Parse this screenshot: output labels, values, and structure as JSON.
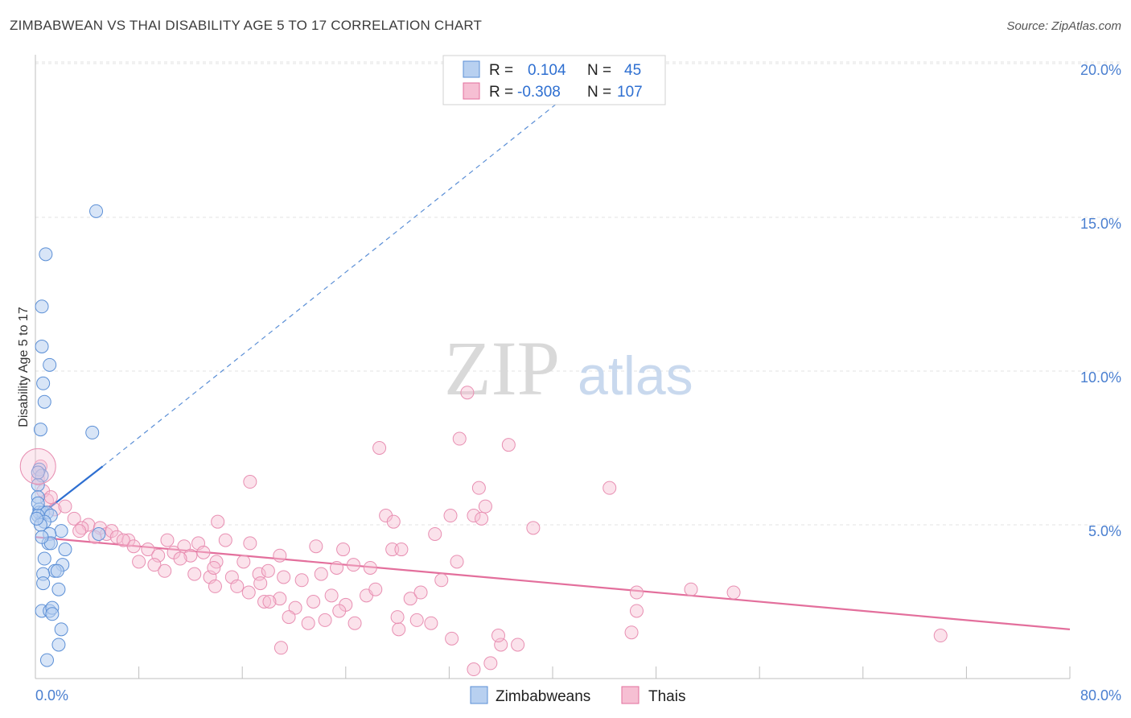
{
  "title": "ZIMBABWEAN VS THAI DISABILITY AGE 5 TO 17 CORRELATION CHART",
  "source": "Source: ZipAtlas.com",
  "watermark": {
    "zip": "ZIP",
    "atlas": "atlas"
  },
  "colors": {
    "blue": "#5b8fd6",
    "blue_fill": "#b8d0f0",
    "pink": "#e36f9c",
    "pink_fill": "#f6bfd3",
    "tick": "#4a7fd0"
  },
  "legend": {
    "rows": [
      {
        "r_label": "R =",
        "r_value": "0.104",
        "n_label": "N =",
        "n_value": "45"
      },
      {
        "r_label": "R =",
        "r_value": "-0.308",
        "n_label": "N =",
        "n_value": "107"
      }
    ]
  },
  "bottom_legend": [
    "Zimbabweans",
    "Thais"
  ],
  "chart_data": {
    "type": "scatter",
    "ylabel": "Disability Age 5 to 17",
    "xlim": [
      0,
      80
    ],
    "ylim": [
      0,
      20
    ],
    "x_tick_labels": [
      "0.0%",
      "80.0%"
    ],
    "y_ticks": [
      5,
      10,
      15,
      20
    ],
    "y_tick_labels": [
      "5.0%",
      "10.0%",
      "15.0%",
      "20.0%"
    ],
    "grid": true,
    "legend_position": "top-center",
    "series": [
      {
        "name": "Zimbabweans",
        "color": "#5b8fd6",
        "points": [
          [
            4.7,
            15.2
          ],
          [
            0.8,
            13.8
          ],
          [
            0.5,
            12.1
          ],
          [
            0.5,
            10.8
          ],
          [
            1.1,
            10.2
          ],
          [
            0.6,
            9.6
          ],
          [
            0.7,
            9.0
          ],
          [
            0.4,
            8.1
          ],
          [
            4.4,
            8.0
          ],
          [
            0.3,
            6.8
          ],
          [
            0.5,
            6.6
          ],
          [
            0.2,
            6.3
          ],
          [
            0.2,
            5.9
          ],
          [
            0.3,
            5.5
          ],
          [
            0.3,
            5.4
          ],
          [
            0.6,
            5.4
          ],
          [
            0.9,
            5.4
          ],
          [
            1.2,
            5.3
          ],
          [
            0.2,
            5.3
          ],
          [
            0.7,
            5.1
          ],
          [
            0.4,
            5.0
          ],
          [
            2.0,
            4.8
          ],
          [
            4.9,
            4.7
          ],
          [
            1.1,
            4.7
          ],
          [
            1.0,
            4.4
          ],
          [
            1.2,
            4.4
          ],
          [
            2.3,
            4.2
          ],
          [
            0.7,
            3.9
          ],
          [
            2.1,
            3.7
          ],
          [
            1.5,
            3.5
          ],
          [
            0.6,
            3.4
          ],
          [
            1.7,
            3.5
          ],
          [
            1.8,
            2.9
          ],
          [
            0.6,
            3.1
          ],
          [
            0.5,
            2.2
          ],
          [
            1.1,
            2.2
          ],
          [
            1.3,
            2.3
          ],
          [
            2.0,
            1.6
          ],
          [
            1.8,
            1.1
          ],
          [
            0.9,
            0.6
          ],
          [
            0.2,
            5.7
          ],
          [
            0.1,
            5.2
          ],
          [
            0.2,
            6.7
          ],
          [
            0.5,
            4.6
          ],
          [
            1.3,
            2.1
          ]
        ],
        "trend": {
          "x0": 0,
          "y0": 5.2,
          "x1": 5.2,
          "y1": 6.9,
          "ext_x1": 43,
          "ext_y1": 19.6
        }
      },
      {
        "name": "Thais",
        "color": "#e36f9c",
        "points": [
          [
            33.4,
            9.3
          ],
          [
            26.6,
            7.5
          ],
          [
            32.8,
            7.8
          ],
          [
            36.6,
            7.6
          ],
          [
            16.6,
            6.4
          ],
          [
            34.3,
            6.2
          ],
          [
            44.4,
            6.2
          ],
          [
            0.4,
            6.9
          ],
          [
            0.6,
            6.1
          ],
          [
            0.9,
            5.8
          ],
          [
            1.5,
            5.5
          ],
          [
            3.0,
            5.2
          ],
          [
            4.1,
            5.0
          ],
          [
            14.1,
            5.1
          ],
          [
            27.1,
            5.3
          ],
          [
            27.7,
            5.1
          ],
          [
            32.1,
            5.3
          ],
          [
            33.9,
            5.3
          ],
          [
            34.8,
            5.6
          ],
          [
            38.5,
            4.9
          ],
          [
            30.9,
            4.7
          ],
          [
            5.0,
            4.9
          ],
          [
            5.5,
            4.7
          ],
          [
            5.9,
            4.8
          ],
          [
            6.3,
            4.6
          ],
          [
            7.2,
            4.5
          ],
          [
            7.6,
            4.3
          ],
          [
            8.7,
            4.2
          ],
          [
            9.5,
            4.0
          ],
          [
            10.2,
            4.5
          ],
          [
            10.7,
            4.1
          ],
          [
            11.5,
            4.3
          ],
          [
            12.0,
            4.0
          ],
          [
            12.6,
            4.4
          ],
          [
            13.0,
            4.1
          ],
          [
            14.7,
            4.5
          ],
          [
            16.6,
            4.4
          ],
          [
            18.9,
            4.0
          ],
          [
            21.7,
            4.3
          ],
          [
            23.8,
            4.2
          ],
          [
            27.6,
            4.2
          ],
          [
            8.0,
            3.8
          ],
          [
            9.2,
            3.7
          ],
          [
            10.0,
            3.5
          ],
          [
            11.2,
            3.9
          ],
          [
            12.3,
            3.4
          ],
          [
            13.5,
            3.3
          ],
          [
            14.0,
            3.8
          ],
          [
            15.2,
            3.3
          ],
          [
            16.1,
            3.8
          ],
          [
            17.3,
            3.4
          ],
          [
            18.0,
            3.5
          ],
          [
            19.2,
            3.3
          ],
          [
            20.6,
            3.2
          ],
          [
            22.1,
            3.4
          ],
          [
            23.3,
            3.6
          ],
          [
            24.6,
            3.7
          ],
          [
            25.9,
            3.6
          ],
          [
            31.4,
            3.2
          ],
          [
            32.6,
            3.8
          ],
          [
            13.8,
            3.6
          ],
          [
            15.6,
            3.0
          ],
          [
            16.5,
            2.8
          ],
          [
            17.7,
            2.5
          ],
          [
            18.9,
            2.6
          ],
          [
            20.1,
            2.3
          ],
          [
            21.5,
            2.5
          ],
          [
            22.9,
            2.7
          ],
          [
            24.0,
            2.4
          ],
          [
            25.6,
            2.7
          ],
          [
            29.0,
            2.6
          ],
          [
            29.8,
            2.8
          ],
          [
            18.1,
            2.5
          ],
          [
            19.6,
            2.0
          ],
          [
            21.1,
            1.8
          ],
          [
            22.4,
            1.9
          ],
          [
            24.7,
            1.8
          ],
          [
            28.1,
            1.6
          ],
          [
            29.5,
            1.9
          ],
          [
            30.6,
            1.8
          ],
          [
            32.2,
            1.3
          ],
          [
            36.0,
            1.1
          ],
          [
            37.3,
            1.1
          ],
          [
            35.2,
            0.5
          ],
          [
            33.9,
            0.3
          ],
          [
            19.0,
            1.0
          ],
          [
            35.8,
            1.4
          ],
          [
            46.5,
            2.8
          ],
          [
            46.1,
            1.5
          ],
          [
            46.5,
            2.2
          ],
          [
            50.7,
            2.9
          ],
          [
            54.0,
            2.8
          ],
          [
            70.0,
            1.4
          ],
          [
            0.2,
            6.5
          ],
          [
            1.2,
            5.9
          ],
          [
            2.3,
            5.6
          ],
          [
            3.6,
            4.9
          ],
          [
            6.8,
            4.5
          ],
          [
            3.4,
            4.8
          ],
          [
            4.6,
            4.6
          ],
          [
            28.0,
            2.0
          ],
          [
            13.9,
            3.0
          ],
          [
            17.4,
            3.1
          ],
          [
            23.5,
            2.2
          ],
          [
            26.3,
            2.9
          ],
          [
            34.5,
            5.2
          ],
          [
            28.3,
            4.2
          ]
        ],
        "trend": {
          "x0": 0,
          "y0": 4.6,
          "x1": 80,
          "y1": 1.6
        }
      }
    ]
  }
}
